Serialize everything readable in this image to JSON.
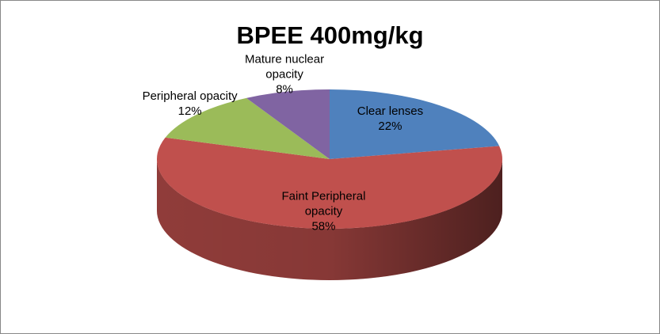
{
  "chart_data": {
    "type": "pie",
    "title": "BPEE 400mg/kg",
    "categories": [
      "Clear lenses",
      "Faint Peripheral opacity",
      "Peripheral opacity",
      "Mature nuclear opacity"
    ],
    "values": [
      22,
      58,
      12,
      8
    ],
    "value_labels": [
      "22%",
      "58%",
      "12%",
      "8%"
    ],
    "colors": [
      "#4f81bd",
      "#c0504d",
      "#9bbb59",
      "#8064a2"
    ]
  }
}
